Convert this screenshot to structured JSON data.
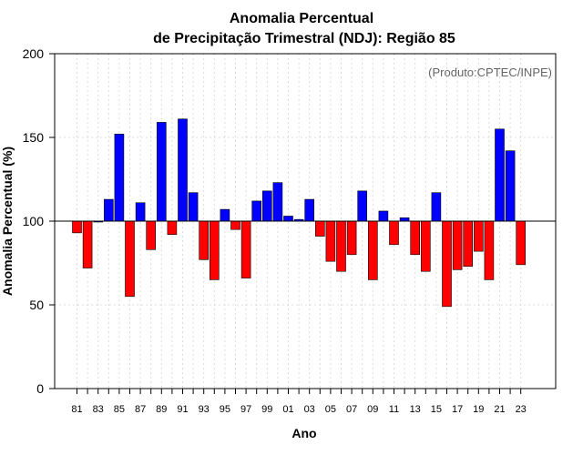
{
  "chart_data": {
    "type": "bar",
    "title": "Anomalia Percentual",
    "subtitle": "de Precipitação Trimestral (NDJ): Região 85",
    "xlabel": "Ano",
    "ylabel": "Anomalia Percentual (%)",
    "annotation": "(Produto:CPTEC/INPE)",
    "ylim": [
      0,
      200
    ],
    "yticks": [
      0,
      50,
      100,
      150,
      200
    ],
    "baseline": 100,
    "grid": true,
    "colors": {
      "above": "#0000ff",
      "below": "#ff0000",
      "edge": "#000000",
      "grid": "#d3d3d3"
    },
    "categories": [
      "81",
      "82",
      "83",
      "84",
      "85",
      "86",
      "87",
      "88",
      "89",
      "90",
      "91",
      "92",
      "93",
      "94",
      "95",
      "96",
      "97",
      "98",
      "99",
      "00",
      "01",
      "02",
      "03",
      "04",
      "05",
      "06",
      "07",
      "08",
      "09",
      "10",
      "11",
      "12",
      "13",
      "14",
      "15",
      "16",
      "17",
      "18",
      "19",
      "20",
      "21",
      "22",
      "23"
    ],
    "xtick_labels": [
      "81",
      "83",
      "85",
      "87",
      "89",
      "91",
      "93",
      "95",
      "97",
      "99",
      "01",
      "03",
      "05",
      "07",
      "09",
      "11",
      "13",
      "15",
      "17",
      "19",
      "21",
      "23"
    ],
    "values": [
      93,
      72,
      100,
      113,
      152,
      55,
      111,
      83,
      159,
      92,
      161,
      117,
      77,
      65,
      107,
      95,
      66,
      112,
      118,
      123,
      103,
      101,
      113,
      91,
      76,
      70,
      80,
      118,
      65,
      106,
      86,
      102,
      80,
      70,
      117,
      49,
      71,
      73,
      82,
      65,
      155,
      142,
      74
    ]
  }
}
